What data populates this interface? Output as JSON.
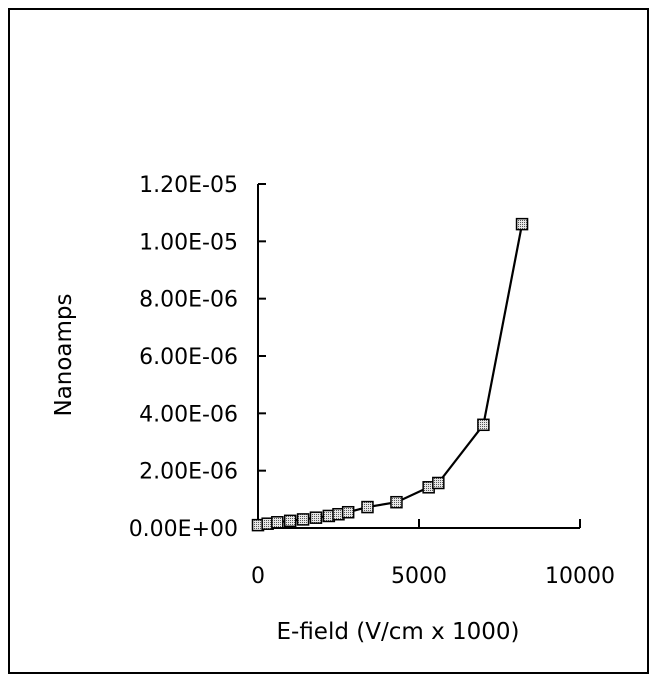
{
  "chart_data": {
    "type": "scatter",
    "title": "",
    "xlabel": "E-field (V/cm x 1000)",
    "ylabel": "Nanoamps",
    "xlim": [
      0,
      10000
    ],
    "ylim": [
      0,
      1.2e-05
    ],
    "x_ticks": [
      {
        "value": 0,
        "label": "0"
      },
      {
        "value": 5000,
        "label": "5000"
      },
      {
        "value": 10000,
        "label": "10000"
      }
    ],
    "y_ticks": [
      {
        "value": 0,
        "label": "0.00E+00"
      },
      {
        "value": 2e-06,
        "label": "2.00E-06"
      },
      {
        "value": 4e-06,
        "label": "4.00E-06"
      },
      {
        "value": 6e-06,
        "label": "6.00E-06"
      },
      {
        "value": 8e-06,
        "label": "8.00E-06"
      },
      {
        "value": 1e-05,
        "label": "1.00E-05"
      },
      {
        "value": 1.2e-05,
        "label": "1.20E-05"
      }
    ],
    "grid": false,
    "connected": true,
    "marker": "square-hatched",
    "series": [
      {
        "x": [
          0,
          300,
          600,
          1000,
          1400,
          1800,
          2200,
          2500,
          2800,
          3400,
          4300,
          5300,
          5600,
          7000,
          8200
        ],
        "y": [
          1e-07,
          1.5e-07,
          2e-07,
          2.5e-07,
          3e-07,
          3.6e-07,
          4.2e-07,
          4.8e-07,
          5.5e-07,
          7.3e-07,
          9e-07,
          1.42e-06,
          1.57e-06,
          3.6e-06,
          1.06e-05
        ]
      }
    ]
  },
  "colors": {
    "line": "#000000",
    "marker_fill": "#c8c8c8",
    "marker_border": "#000000"
  }
}
